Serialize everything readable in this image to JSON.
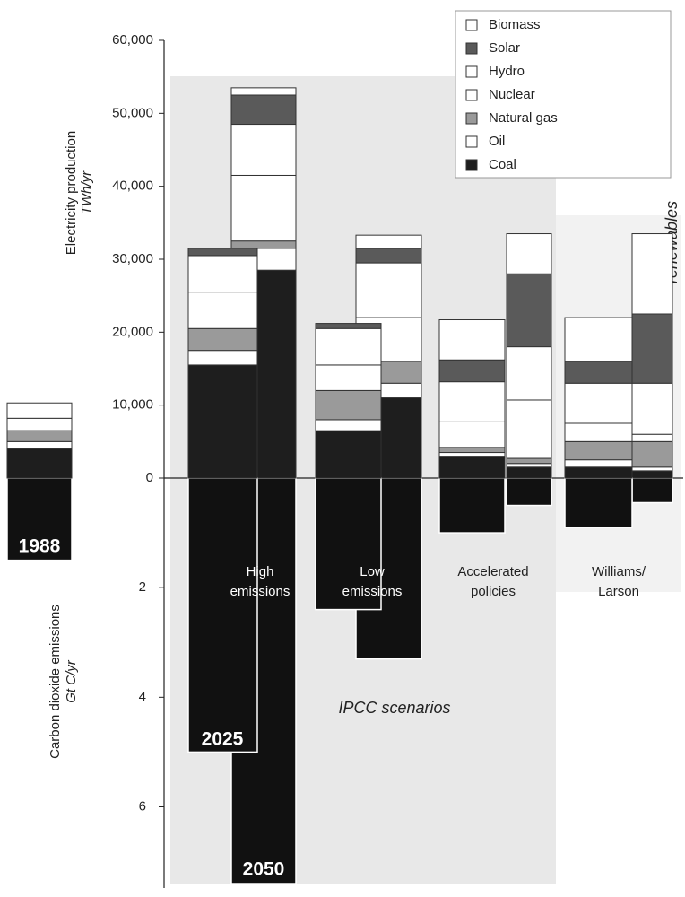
{
  "chart_data": {
    "type": "stacked-bar",
    "y_title": "Electricity production",
    "y_unit": "TWh/yr",
    "y2_title": "Carbon dioxide emissions",
    "y2_unit": "Gt C/yr",
    "categories": [
      "1988",
      "2025",
      "2050",
      null,
      null,
      null,
      null,
      null,
      null
    ],
    "scenarios": [
      {
        "lines": [
          "High",
          "emissions"
        ]
      },
      {
        "lines": [
          "Low",
          "emissions"
        ]
      },
      {
        "lines": [
          "Accelerated",
          "policies"
        ]
      },
      {
        "lines": [
          "Williams/",
          "Larson"
        ]
      }
    ],
    "group_label": "IPCC scenarios",
    "annotation": "renewables",
    "ylim": [
      0,
      60000
    ],
    "yticks": [
      0,
      {
        "value": 10000,
        "label": "10,000"
      },
      {
        "value": 20000,
        "label": "20,000"
      },
      {
        "value": 30000,
        "label": "30,000"
      },
      {
        "value": 40000,
        "label": "40,000"
      },
      {
        "value": 50000,
        "label": "50,000"
      },
      {
        "value": 60000,
        "label": "60,000"
      }
    ],
    "y2lim": [
      0,
      7.4
    ],
    "y2ticks": [
      2,
      4,
      6
    ],
    "series": [
      {
        "name": "Coal",
        "color": "#1e1e1e",
        "values": [
          4000,
          15500,
          28500,
          6500,
          11000,
          3000,
          1500,
          1500,
          1000
        ]
      },
      {
        "name": "Oil",
        "color": "#ffffff",
        "values": [
          1000,
          2000,
          3000,
          1500,
          2000,
          500,
          500,
          1000,
          500
        ]
      },
      {
        "name": "Natural gas",
        "color": "#9a9a9a",
        "values": [
          1500,
          3000,
          1000,
          4000,
          3000,
          700,
          700,
          2500,
          3500
        ]
      },
      {
        "name": "Nuclear",
        "color": "#ffffff",
        "values": [
          1700,
          5000,
          9000,
          3500,
          6000,
          3500,
          8000,
          2500,
          1000
        ]
      },
      {
        "name": "Hydro",
        "color": "#ffffff",
        "values": [
          2100,
          5000,
          7000,
          5000,
          7500,
          5500,
          7300,
          5500,
          7000
        ]
      },
      {
        "name": "Solar",
        "color": "#5a5a5a",
        "values": [
          0,
          1000,
          4000,
          700,
          2000,
          3000,
          10000,
          3000,
          9500
        ]
      },
      {
        "name": "Biomass",
        "color": "#ffffff",
        "values": [
          0,
          0,
          1000,
          0,
          1800,
          5500,
          5500,
          6000,
          11000
        ]
      }
    ],
    "emissions": {
      "color": "#111111",
      "axis": "y2",
      "values": [
        1.5,
        5.0,
        7.4,
        2.4,
        3.3,
        1.0,
        0.5,
        0.9,
        0.45
      ]
    }
  }
}
